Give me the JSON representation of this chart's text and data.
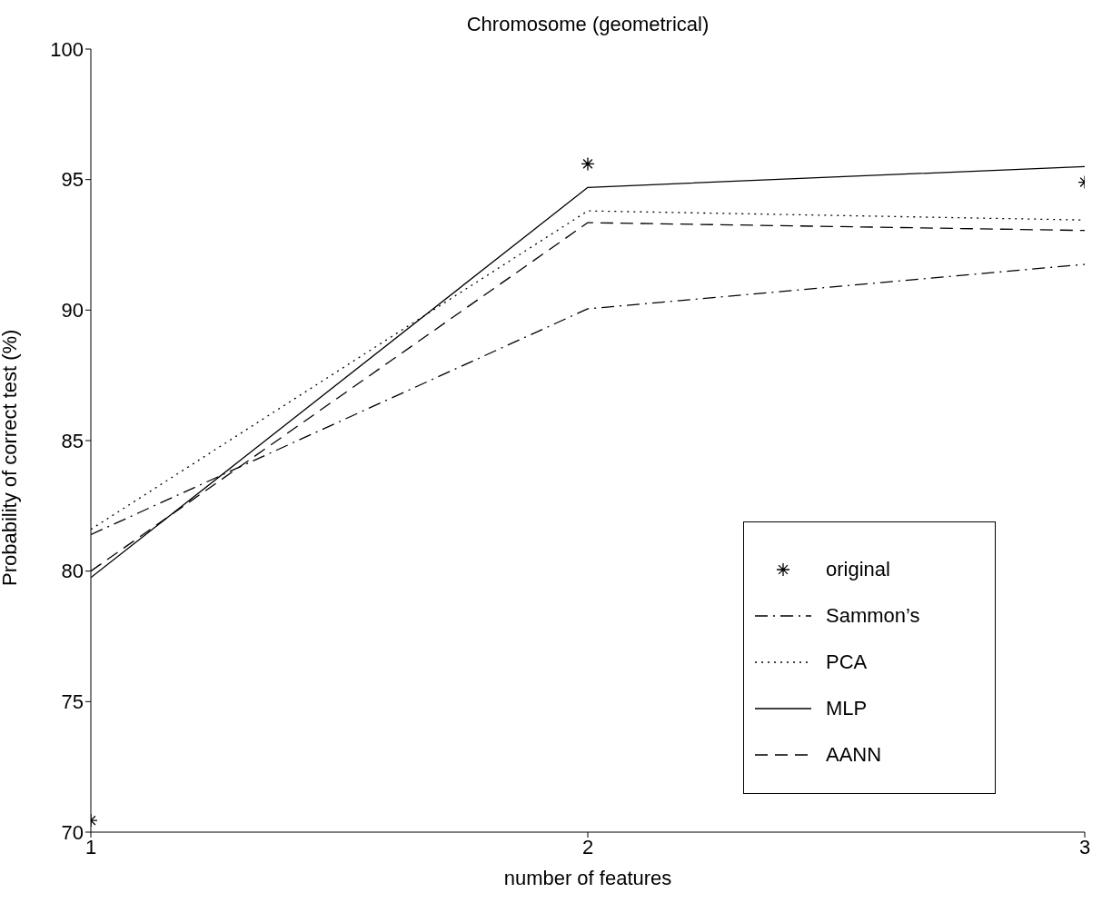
{
  "chart_data": {
    "type": "line",
    "title": "Chromosome (geometrical)",
    "xlabel": "number of features",
    "ylabel": "Probability of correct test (%)",
    "x": [
      1,
      2,
      3
    ],
    "xlim": [
      1,
      3
    ],
    "xticks": [
      1,
      2,
      3
    ],
    "ylim": [
      70,
      100
    ],
    "yticks": [
      70,
      75,
      80,
      85,
      90,
      95,
      100
    ],
    "legend": "bottom right",
    "series": [
      {
        "name": "original",
        "type": "scatter",
        "marker": "cross",
        "color": "#000000",
        "values": [
          70.45,
          95.6,
          94.9
        ]
      },
      {
        "name": "Sammon’s",
        "line_style": "dashdot",
        "color": "#000000",
        "values": [
          81.4,
          90.05,
          91.75
        ]
      },
      {
        "name": "PCA",
        "line_style": "dotted",
        "color": "#000000",
        "values": [
          81.6,
          93.8,
          93.45
        ]
      },
      {
        "name": "MLP",
        "line_style": "solid",
        "color": "#000000",
        "values": [
          79.75,
          94.7,
          95.5
        ]
      },
      {
        "name": "AANN",
        "line_style": "dashed",
        "color": "#000000",
        "values": [
          80.0,
          93.35,
          93.05
        ]
      }
    ]
  }
}
